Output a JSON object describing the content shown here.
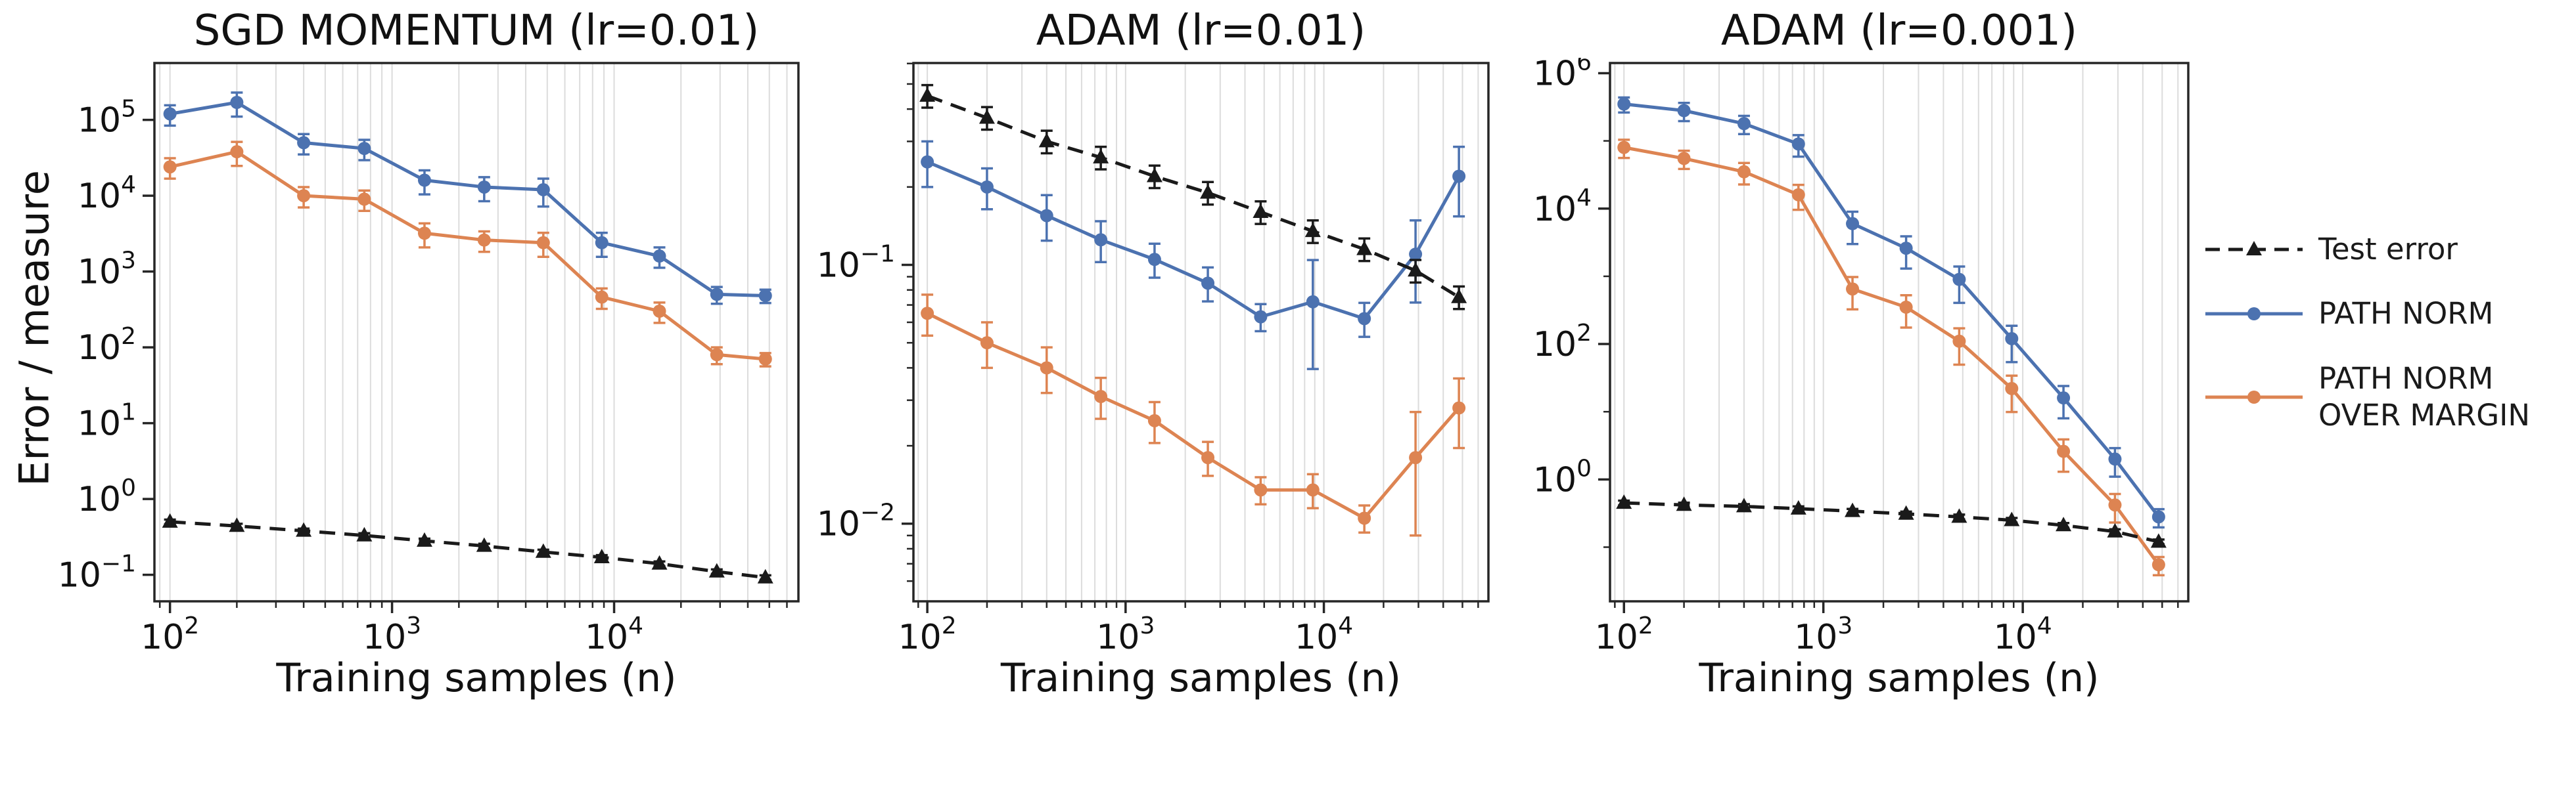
{
  "figure": {
    "ylabel": "Error / measure"
  },
  "legend": {
    "items": [
      {
        "label": "Test error",
        "color": "#1a1a1a",
        "marker": "triangle",
        "dash": true
      },
      {
        "label": "PATH NORM",
        "color": "#4c72b0",
        "marker": "circle",
        "dash": false
      },
      {
        "label": "PATH NORM\nOVER MARGIN",
        "color": "#dd8452",
        "marker": "circle",
        "dash": false
      }
    ]
  },
  "chart_data": [
    {
      "type": "line",
      "title": "SGD MOMENTUM (lr=0.01)",
      "xlabel": "Training samples (n)",
      "ylabel": "Error / measure",
      "xscale": "log",
      "yscale": "log",
      "xlim_log10": [
        1.93,
        4.83
      ],
      "ylim_log10": [
        -1.35,
        5.75
      ],
      "xticks_log10": [
        2,
        3,
        4
      ],
      "yticks_log10": [
        -1,
        0,
        1,
        2,
        3,
        4,
        5
      ],
      "y_minor_ticks": false,
      "grid": "x-minor-and-major",
      "x": [
        100,
        200,
        400,
        750,
        1400,
        2600,
        4800,
        8800,
        16000,
        29000,
        48000
      ],
      "series": [
        {
          "name": "PATH NORM",
          "color": "#4c72b0",
          "marker": "circle",
          "dash": false,
          "values": [
            120000,
            170000,
            50000,
            42000,
            16000,
            13000,
            12000,
            2400,
            1600,
            500,
            480
          ],
          "yerr_frac": [
            0.3,
            0.35,
            0.3,
            0.3,
            0.35,
            0.35,
            0.4,
            0.35,
            0.3,
            0.25,
            0.2
          ]
        },
        {
          "name": "PATH NORM OVER MARGIN",
          "color": "#dd8452",
          "marker": "circle",
          "dash": false,
          "values": [
            24000,
            38000,
            10000,
            9000,
            3200,
            2600,
            2400,
            460,
            300,
            80,
            70
          ],
          "yerr_frac": [
            0.3,
            0.35,
            0.3,
            0.3,
            0.35,
            0.3,
            0.35,
            0.3,
            0.3,
            0.25,
            0.2
          ]
        },
        {
          "name": "Test error",
          "color": "#1a1a1a",
          "marker": "triangle",
          "dash": true,
          "values": [
            0.5,
            0.44,
            0.38,
            0.33,
            0.28,
            0.24,
            0.2,
            0.17,
            0.14,
            0.11,
            0.092
          ],
          "yerr_frac": [
            0.07,
            0.07,
            0.07,
            0.07,
            0.07,
            0.07,
            0.07,
            0.07,
            0.07,
            0.07,
            0.07
          ]
        }
      ]
    },
    {
      "type": "line",
      "title": "ADAM (lr=0.01)",
      "xlabel": "Training samples (n)",
      "ylabel": "Error / measure",
      "xscale": "log",
      "yscale": "log",
      "xlim_log10": [
        1.93,
        4.83
      ],
      "ylim_log10": [
        -2.3,
        -0.22
      ],
      "xticks_log10": [
        2,
        3,
        4
      ],
      "yticks_log10": [
        -1,
        -2
      ],
      "y_minor_ticks": true,
      "grid": "x-minor-and-major",
      "x": [
        100,
        200,
        400,
        750,
        1400,
        2600,
        4800,
        8800,
        16000,
        29000,
        48000
      ],
      "series": [
        {
          "name": "PATH NORM",
          "color": "#4c72b0",
          "marker": "circle",
          "dash": false,
          "values": [
            0.25,
            0.2,
            0.155,
            0.125,
            0.105,
            0.085,
            0.063,
            0.072,
            0.062,
            0.11,
            0.22
          ],
          "yerr_frac": [
            0.2,
            0.18,
            0.2,
            0.18,
            0.15,
            0.15,
            0.12,
            0.45,
            0.15,
            0.35,
            0.3
          ]
        },
        {
          "name": "PATH NORM OVER MARGIN",
          "color": "#dd8452",
          "marker": "circle",
          "dash": false,
          "values": [
            0.065,
            0.05,
            0.04,
            0.031,
            0.025,
            0.018,
            0.0135,
            0.0135,
            0.0105,
            0.018,
            0.028
          ],
          "yerr_frac": [
            0.18,
            0.2,
            0.2,
            0.18,
            0.18,
            0.15,
            0.12,
            0.15,
            0.12,
            0.5,
            0.3
          ]
        },
        {
          "name": "Test error",
          "color": "#1a1a1a",
          "marker": "triangle",
          "dash": true,
          "values": [
            0.45,
            0.37,
            0.3,
            0.26,
            0.22,
            0.19,
            0.16,
            0.135,
            0.115,
            0.095,
            0.075
          ],
          "yerr_frac": [
            0.1,
            0.1,
            0.1,
            0.1,
            0.1,
            0.1,
            0.1,
            0.1,
            0.1,
            0.1,
            0.1
          ]
        }
      ]
    },
    {
      "type": "line",
      "title": "ADAM (lr=0.001)",
      "xlabel": "Training samples (n)",
      "ylabel": "Error / measure",
      "xscale": "log",
      "yscale": "log",
      "xlim_log10": [
        1.93,
        4.83
      ],
      "ylim_log10": [
        -1.8,
        6.15
      ],
      "xticks_log10": [
        2,
        3,
        4
      ],
      "yticks_log10": [
        0,
        2,
        4,
        6
      ],
      "y_minor_ticks": false,
      "grid": "x-minor-and-major",
      "x": [
        100,
        200,
        400,
        750,
        1400,
        2600,
        4800,
        8800,
        16000,
        29000,
        48000
      ],
      "series": [
        {
          "name": "PATH NORM",
          "color": "#4c72b0",
          "marker": "circle",
          "dash": false,
          "values": [
            350000,
            280000,
            180000,
            90000,
            6000,
            2600,
            900,
            120,
            16,
            2.0,
            0.28
          ],
          "yerr_frac": [
            0.25,
            0.3,
            0.3,
            0.35,
            0.5,
            0.5,
            0.55,
            0.55,
            0.5,
            0.45,
            0.3
          ]
        },
        {
          "name": "PATH NORM OVER MARGIN",
          "color": "#dd8452",
          "marker": "circle",
          "dash": false,
          "values": [
            80000,
            55000,
            35000,
            16000,
            650,
            350,
            110,
            22,
            2.6,
            0.42,
            0.055
          ],
          "yerr_frac": [
            0.3,
            0.3,
            0.35,
            0.4,
            0.5,
            0.5,
            0.55,
            0.55,
            0.5,
            0.45,
            0.3
          ]
        },
        {
          "name": "Test error",
          "color": "#1a1a1a",
          "marker": "triangle",
          "dash": true,
          "values": [
            0.45,
            0.42,
            0.4,
            0.37,
            0.34,
            0.31,
            0.28,
            0.25,
            0.21,
            0.17,
            0.12
          ],
          "yerr_frac": [
            0.08,
            0.08,
            0.08,
            0.08,
            0.08,
            0.08,
            0.08,
            0.08,
            0.08,
            0.08,
            0.08
          ]
        }
      ]
    }
  ]
}
